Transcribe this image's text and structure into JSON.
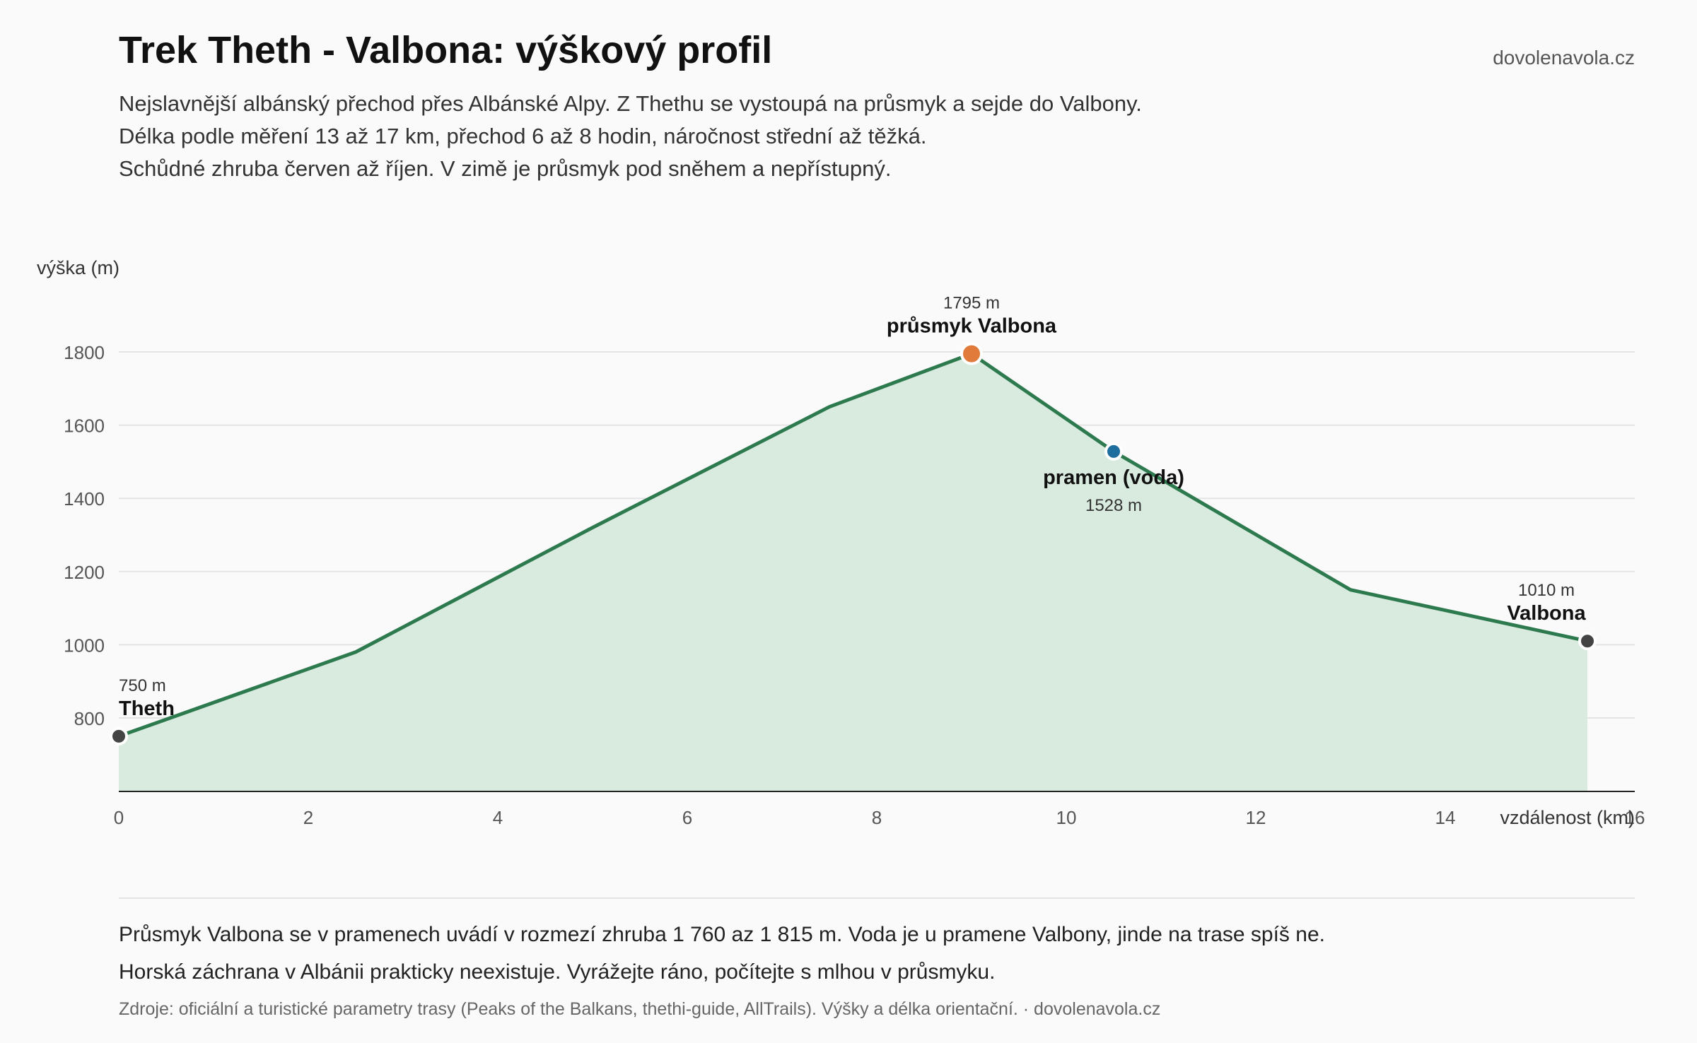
{
  "header": {
    "title": "Trek Theth - Valbona: výškový profil",
    "brand": "dovolenavola.cz",
    "subtitle_lines": [
      "Nejslavnější albánský přechod přes Albánské Alpy. Z Thethu se vystoupá na průsmyk a sejde do Valbony.",
      "Délka podle měření 13 až 17 km, přechod 6 až 8 hodin, náročnost střední až těžká.",
      "Schůdné zhruba červen až říjen. V zimě je průsmyk pod sněhem a nepřístupný."
    ]
  },
  "chart_data": {
    "type": "area",
    "title": "",
    "xlabel": "vzdálenost (km)",
    "ylabel": "výška (m)",
    "xlim": [
      0,
      16
    ],
    "ylim": [
      600,
      1900
    ],
    "x_ticks": [
      0,
      2,
      4,
      6,
      8,
      10,
      12,
      14,
      16
    ],
    "y_ticks": [
      800,
      1000,
      1200,
      1400,
      1600,
      1800
    ],
    "grid": true,
    "series": [
      {
        "x": [
          0,
          2.5,
          5,
          7.5,
          9,
          10.5,
          13,
          15.5
        ],
        "y": [
          750,
          980,
          1320,
          1650,
          1795,
          1528,
          1150,
          1010
        ]
      }
    ],
    "line_color": "#2e7a4f",
    "fill_color": "#d9eadf",
    "annotations": [
      {
        "name": "Theth",
        "elevation_label": "750 m",
        "x": 0,
        "y": 750,
        "color": "#444444",
        "placement": "above"
      },
      {
        "name": "průsmyk Valbona",
        "elevation_label": "1795 m",
        "x": 9,
        "y": 1795,
        "color": "#e07b3c",
        "placement": "above"
      },
      {
        "name": "pramen (voda)",
        "elevation_label": "1528 m",
        "x": 10.5,
        "y": 1528,
        "color": "#1f6f9e",
        "placement": "below"
      },
      {
        "name": "Valbona",
        "elevation_label": "1010 m",
        "x": 15.5,
        "y": 1010,
        "color": "#444444",
        "placement": "above"
      }
    ]
  },
  "footer": {
    "notes": [
      "Průsmyk Valbona se v pramenech uvádí v rozmezí zhruba 1 760 az 1 815 m. Voda je u pramene Valbony, jinde na trase spíš ne.",
      "Horská záchrana v Albánii prakticky neexistuje. Vyrážejte ráno, počítejte s mlhou v průsmyku."
    ],
    "sources": "Zdroje: oficiální a turistické parametry trasy (Peaks of the Balkans, thethi-guide, AllTrails). Výšky a délka orientační. · dovolenavola.cz"
  }
}
